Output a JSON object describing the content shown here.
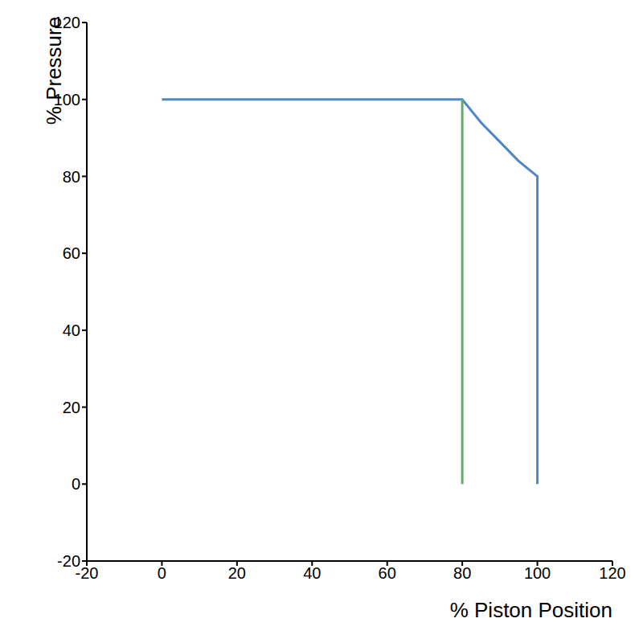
{
  "chart_data": {
    "type": "line",
    "x_label": "% Piston Position",
    "y_label": "% Pressure",
    "xlim": [
      -20,
      120
    ],
    "xticks": [
      -20,
      0,
      20,
      40,
      60,
      80,
      100,
      120
    ],
    "ylim": [
      -20,
      120
    ],
    "yticks": [
      -20,
      0,
      20,
      40,
      60,
      80,
      100,
      120
    ],
    "grid": false,
    "series": [
      {
        "color": "#4f86c4",
        "x": [
          0,
          80,
          85,
          90,
          95,
          100,
          100
        ],
        "values": [
          100,
          100,
          94,
          89,
          84,
          80,
          0
        ]
      },
      {
        "color": "#67a867",
        "x": [
          80,
          80
        ],
        "values": [
          0,
          100
        ]
      }
    ]
  }
}
